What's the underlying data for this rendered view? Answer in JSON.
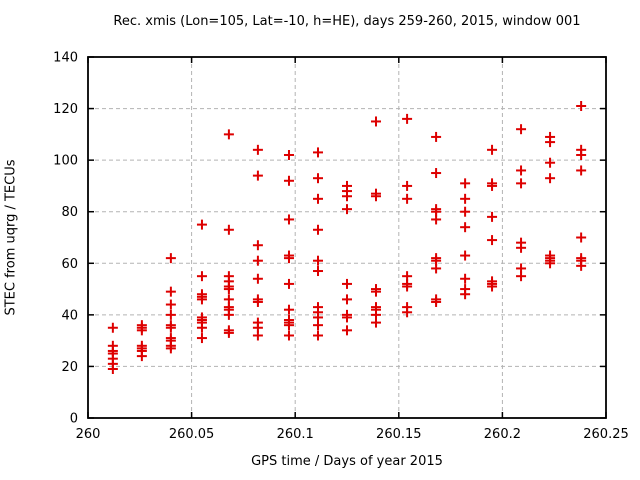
{
  "colors": {
    "marker": "#dd0000",
    "grid": "#b3b3b3",
    "axis": "#000000",
    "background": "#ffffff"
  },
  "chart_data": {
    "type": "scatter",
    "title": "Rec. xmis (Lon=105, Lat=-10, h=HE), days 259-260, 2015, window 001",
    "xlabel": "GPS time / Days of year 2015",
    "ylabel": "STEC from uqrg / TECUs",
    "xlim": [
      260,
      260.25
    ],
    "ylim": [
      0,
      140
    ],
    "xticks": [
      260,
      260.05,
      260.1,
      260.15,
      260.2,
      260.25
    ],
    "xtick_labels": [
      "260",
      "260.05",
      "260.1",
      "260.15",
      "260.2",
      "260.25"
    ],
    "yticks": [
      0,
      20,
      40,
      60,
      80,
      100,
      120,
      140
    ],
    "ytick_labels": [
      "0",
      "20",
      "40",
      "60",
      "80",
      "100",
      "120",
      "140"
    ],
    "grid": true,
    "legend": "none",
    "marker": "plus",
    "series": [
      {
        "name": "STEC",
        "color": "#dd0000",
        "columns": [
          {
            "x": 260.012,
            "y": [
              35,
              28,
              26,
              25,
              23,
              21,
              19
            ]
          },
          {
            "x": 260.026,
            "y": [
              36,
              35,
              34,
              28,
              27,
              26,
              24
            ]
          },
          {
            "x": 260.04,
            "y": [
              62,
              49,
              44,
              40,
              36,
              35,
              31,
              30,
              28,
              27
            ]
          },
          {
            "x": 260.055,
            "y": [
              75,
              55,
              48,
              47,
              46,
              39,
              38,
              37,
              35,
              31
            ]
          },
          {
            "x": 260.068,
            "y": [
              110,
              73,
              55,
              53,
              51,
              50,
              46,
              43,
              42,
              40,
              34,
              33
            ]
          },
          {
            "x": 260.082,
            "y": [
              104,
              94,
              67,
              61,
              54,
              46,
              45,
              37,
              35,
              32
            ]
          },
          {
            "x": 260.097,
            "y": [
              102,
              92,
              77,
              63,
              62,
              52,
              42,
              38,
              37,
              36,
              32
            ]
          },
          {
            "x": 260.111,
            "y": [
              103,
              93,
              85,
              73,
              61,
              57,
              43,
              41,
              39,
              36,
              32
            ]
          },
          {
            "x": 260.125,
            "y": [
              90,
              88,
              86,
              81,
              52,
              46,
              40,
              39,
              34
            ]
          },
          {
            "x": 260.139,
            "y": [
              115,
              87,
              86,
              50,
              49,
              43,
              42,
              40,
              37
            ]
          },
          {
            "x": 260.154,
            "y": [
              116,
              90,
              85,
              55,
              52,
              51,
              43,
              41
            ]
          },
          {
            "x": 260.168,
            "y": [
              109,
              95,
              81,
              80,
              77,
              62,
              61,
              58,
              46,
              45
            ]
          },
          {
            "x": 260.182,
            "y": [
              91,
              85,
              80,
              74,
              63,
              54,
              50,
              48
            ]
          },
          {
            "x": 260.195,
            "y": [
              104,
              91,
              90,
              78,
              69,
              53,
              52,
              51
            ]
          },
          {
            "x": 260.209,
            "y": [
              112,
              96,
              91,
              68,
              66,
              58,
              55
            ]
          },
          {
            "x": 260.223,
            "y": [
              109,
              107,
              99,
              93,
              63,
              62,
              61,
              60
            ]
          },
          {
            "x": 260.238,
            "y": [
              121,
              104,
              102,
              96,
              70,
              62,
              61,
              59
            ]
          }
        ]
      }
    ]
  }
}
